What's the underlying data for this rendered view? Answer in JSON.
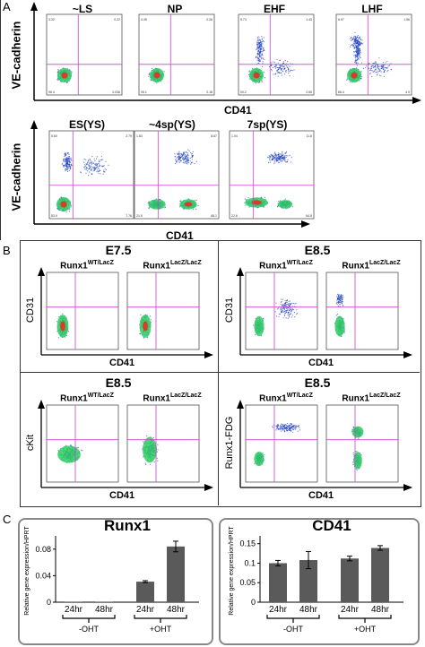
{
  "panelA": {
    "label": "A",
    "row1": {
      "ylabel": "VE-cadherin",
      "xlabel": "CD41",
      "plots": [
        {
          "title": "~LS",
          "q": [
            "3.32",
            "0.22",
            "96.4",
            "0.036"
          ]
        },
        {
          "title": "NP",
          "q": [
            "4.45",
            "0.26",
            "95.1",
            "0.18"
          ]
        },
        {
          "title": "EHF",
          "q": [
            "5.73",
            "1.43",
            "90.2",
            "2.65"
          ]
        },
        {
          "title": "LHF",
          "q": [
            "6.97",
            "1.56",
            "86.4",
            "4.9"
          ]
        }
      ]
    },
    "row2": {
      "ylabel": "VE-cadherin",
      "xlabel": "CD41",
      "plots": [
        {
          "title": "ES(YS)",
          "q": [
            "5.60",
            "2.79",
            "83.9",
            "7.76"
          ]
        },
        {
          "title": "~4sp(YS)",
          "q": [
            "1.83",
            "8.67",
            "21.5",
            "68.1"
          ]
        },
        {
          "title": "7sp(YS)",
          "q": [
            "1.04",
            "11.8",
            "22.6",
            "64.8"
          ]
        }
      ]
    }
  },
  "panelB": {
    "label": "B",
    "cells": [
      {
        "stage": "E7.5",
        "ylabel": "CD31",
        "xlabel": "CD41",
        "g1": "Runx1",
        "g1sup": "WT/LacZ",
        "g2": "Runx1",
        "g2sup": "LacZ/LacZ"
      },
      {
        "stage": "E8.5",
        "ylabel": "CD31",
        "xlabel": "CD41",
        "g1": "Runx1",
        "g1sup": "WT/LacZ",
        "g2": "Runx1",
        "g2sup": "LacZ/LacZ"
      },
      {
        "stage": "E8.5",
        "ylabel": "cKit",
        "xlabel": "CD41",
        "g1": "Runx1",
        "g1sup": "WT/LacZ",
        "g2": "Runx1",
        "g2sup": "LacZ/LacZ"
      },
      {
        "stage": "E8.5",
        "ylabel": "Runx1-FDG",
        "xlabel": "CD41",
        "g1": "Runx1",
        "g1sup": "WT/LacZ",
        "g2": "Runx1",
        "g2sup": "LacZ/LacZ"
      }
    ]
  },
  "panelC": {
    "label": "C",
    "ylabel": "Relative gene expression/HPRT"
  },
  "colors": {
    "quad": "#d040d0",
    "bar": "#5a5a5a",
    "frame": "#888888",
    "density_hi": "#e83020",
    "density_mid": "#30d060",
    "density_lo": "#2040c0"
  },
  "chart_data": [
    {
      "type": "bar",
      "title": "Runx1",
      "ylabel": "Relative gene expression/HPRT",
      "categories": [
        "24hr",
        "48hr",
        "24hr",
        "48hr"
      ],
      "groups": [
        "-OHT",
        "+OHT"
      ],
      "values": [
        0.0005,
        0.0005,
        0.031,
        0.084
      ],
      "errors": [
        0.0003,
        0.0003,
        0.0015,
        0.008
      ],
      "yticks": [
        "0",
        "0.04",
        "0.08"
      ],
      "ylim": [
        0,
        0.1
      ]
    },
    {
      "type": "bar",
      "title": "CD41",
      "ylabel": "Relative gene expression/HPRT",
      "categories": [
        "24hr",
        "48hr",
        "24hr",
        "48hr"
      ],
      "groups": [
        "-OHT",
        "+OHT"
      ],
      "values": [
        0.1,
        0.108,
        0.112,
        0.139
      ],
      "errors": [
        0.007,
        0.022,
        0.006,
        0.006
      ],
      "yticks": [
        "0",
        "0.05",
        "0.1",
        "0.15"
      ],
      "ylim": [
        0,
        0.17
      ]
    }
  ]
}
